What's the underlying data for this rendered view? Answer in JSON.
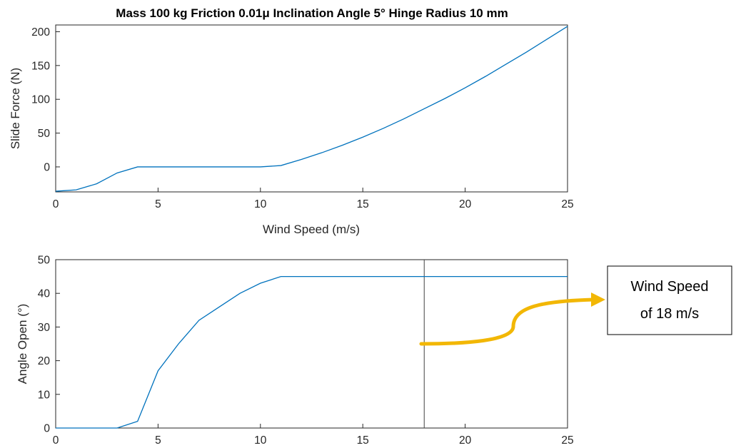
{
  "chart_data": [
    {
      "type": "line",
      "title": "Mass 100 kg Friction 0.01μ Inclination Angle 5° Hinge Radius 10 mm",
      "xlabel": "Wind Speed (m/s)",
      "ylabel": "Slide Force (N)",
      "xlim": [
        0,
        25
      ],
      "ylim": [
        -37,
        210
      ],
      "xticks": [
        0,
        5,
        10,
        15,
        20,
        25
      ],
      "yticks": [
        0,
        50,
        100,
        150,
        200
      ],
      "grid": false,
      "series": [
        {
          "color": "#0072BD",
          "x": [
            0,
            1,
            2,
            3,
            4,
            5,
            6,
            7,
            8,
            9,
            10,
            11,
            12,
            13,
            14,
            15,
            16,
            17,
            18,
            19,
            20,
            21,
            22,
            23,
            24,
            25
          ],
          "y": [
            -36,
            -34,
            -25,
            -9,
            0,
            0,
            0,
            0,
            0,
            0,
            0,
            2,
            11,
            21,
            32,
            44,
            57,
            71,
            86,
            101,
            117,
            134,
            152,
            170,
            189,
            208
          ]
        }
      ]
    },
    {
      "type": "line",
      "title": "",
      "xlabel": "",
      "ylabel": "Angle Open (°)",
      "xlim": [
        0,
        25
      ],
      "ylim": [
        0,
        50
      ],
      "xticks": [
        0,
        5,
        10,
        15,
        20,
        25
      ],
      "yticks": [
        0,
        10,
        20,
        30,
        40,
        50
      ],
      "grid": false,
      "marker_line_x": 18,
      "series": [
        {
          "color": "#0072BD",
          "x": [
            0,
            1,
            2,
            3,
            4,
            5,
            6,
            7,
            8,
            9,
            10,
            11,
            12,
            13,
            14,
            15,
            16,
            17,
            18,
            19,
            20,
            21,
            22,
            23,
            24,
            25
          ],
          "y": [
            0,
            0,
            0,
            0,
            2,
            17,
            25,
            32,
            36,
            40,
            43,
            45,
            45,
            45,
            45,
            45,
            45,
            45,
            45,
            45,
            45,
            45,
            45,
            45,
            45,
            45
          ]
        }
      ]
    }
  ],
  "annotation": {
    "line1": "Wind Speed",
    "line2": "of 18 m/s",
    "arrow_color": "#F2B705"
  }
}
